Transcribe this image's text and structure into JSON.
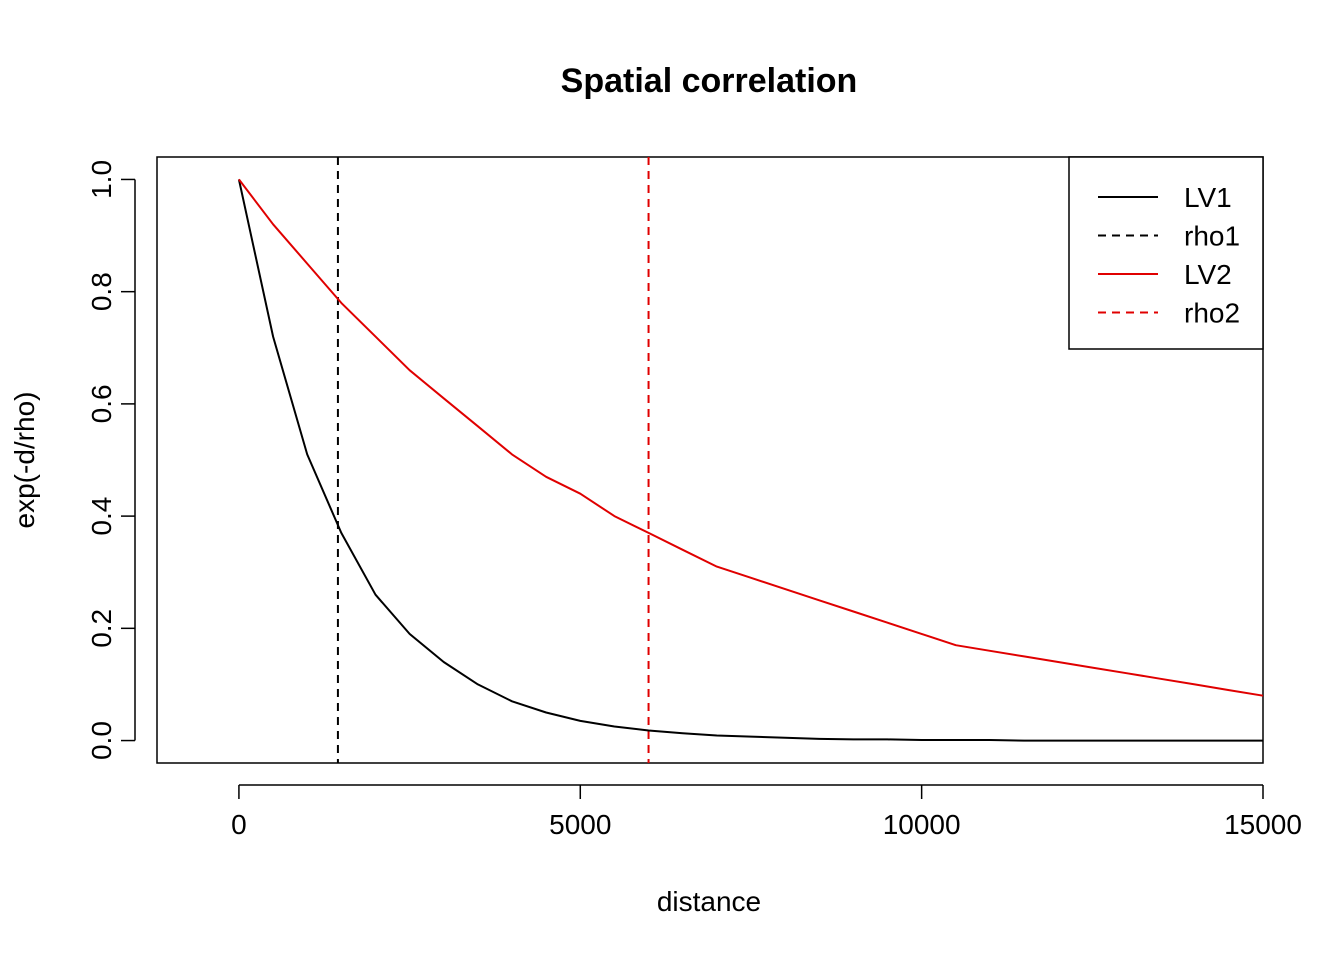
{
  "chart_data": {
    "type": "line",
    "title": "Spatial correlation",
    "xlabel": "distance",
    "ylabel": "exp(-d/rho)",
    "xlim": [
      -1200,
      15000
    ],
    "ylim": [
      -0.04,
      1.04
    ],
    "x_ticks": [
      0,
      5000,
      10000,
      15000
    ],
    "x_tick_labels": [
      "0",
      "5000",
      "10000",
      "15000"
    ],
    "y_ticks": [
      0.0,
      0.2,
      0.4,
      0.6,
      0.8,
      1.0
    ],
    "y_tick_labels": [
      "0.0",
      "0.2",
      "0.4",
      "0.6",
      "0.8",
      "1.0"
    ],
    "grid": false,
    "legend_position": "top-right",
    "x": [
      0,
      500,
      1000,
      1500,
      2000,
      2500,
      3000,
      3500,
      4000,
      4500,
      5000,
      5500,
      6000,
      6500,
      7000,
      7500,
      8000,
      8500,
      9000,
      9500,
      10000,
      10500,
      11000,
      11500,
      12000,
      12500,
      13000,
      13500,
      14000,
      14500,
      15000
    ],
    "series": [
      {
        "name": "LV1",
        "color": "#000000",
        "line": "solid",
        "values": [
          1.0,
          0.72,
          0.51,
          0.37,
          0.26,
          0.19,
          0.14,
          0.1,
          0.07,
          0.05,
          0.035,
          0.025,
          0.018,
          0.013,
          0.009,
          0.007,
          0.005,
          0.003,
          0.002,
          0.002,
          0.001,
          0.001,
          0.001,
          0.0,
          0.0,
          0.0,
          0.0,
          0.0,
          0.0,
          0.0,
          0.0
        ]
      },
      {
        "name": "LV2",
        "color": "#e00000",
        "line": "solid",
        "values": [
          1.0,
          0.92,
          0.85,
          0.78,
          0.72,
          0.66,
          0.61,
          0.56,
          0.51,
          0.47,
          0.44,
          0.4,
          0.37,
          0.34,
          0.31,
          0.29,
          0.27,
          0.25,
          0.23,
          0.21,
          0.19,
          0.17,
          0.16,
          0.15,
          0.14,
          0.13,
          0.12,
          0.11,
          0.1,
          0.09,
          0.08
        ]
      }
    ],
    "vlines": [
      {
        "name": "rho1",
        "x": 1450,
        "color": "#000000",
        "line": "dashed"
      },
      {
        "name": "rho2",
        "x": 6000,
        "color": "#e00000",
        "line": "dashed"
      }
    ],
    "legend": [
      {
        "label": "LV1",
        "color": "#000000",
        "line": "solid"
      },
      {
        "label": "rho1",
        "color": "#000000",
        "line": "dashed"
      },
      {
        "label": "LV2",
        "color": "#e00000",
        "line": "solid"
      },
      {
        "label": "rho2",
        "color": "#e00000",
        "line": "dashed"
      }
    ]
  }
}
